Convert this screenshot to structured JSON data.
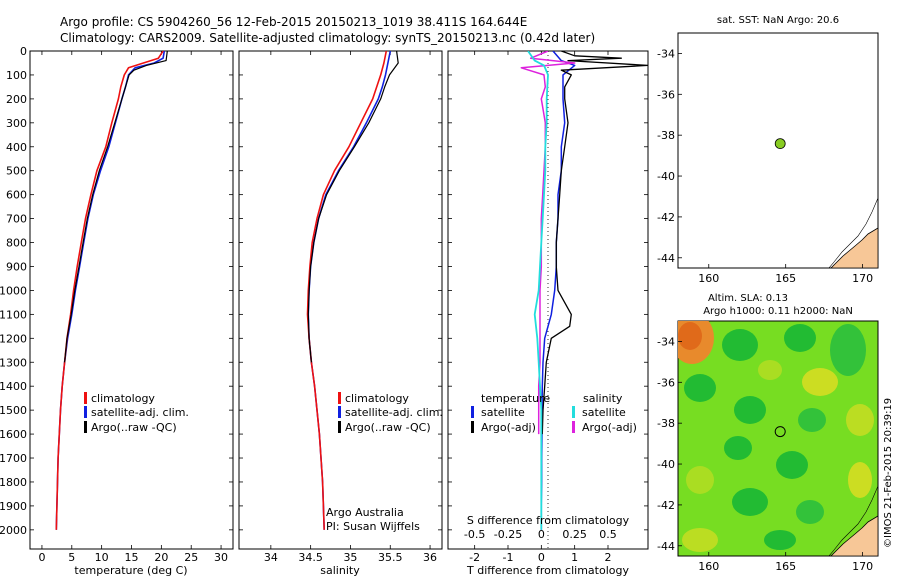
{
  "header": {
    "line1": "Argo profile: CS 5904260_56 12-Feb-2015 20150213_1019 38.411S 164.644E",
    "line2": "Climatology: CARS2009. Satellite-adjusted climatology: synTS_20150213.nc (0.42d later)"
  },
  "depth_ticks": [
    "0",
    "100",
    "200",
    "300",
    "400",
    "500",
    "600",
    "700",
    "800",
    "900",
    "1000",
    "1100",
    "1200",
    "1300",
    "1400",
    "1500",
    "1600",
    "1700",
    "1800",
    "1900",
    "2000"
  ],
  "colors": {
    "climatology": "#ee1111",
    "satellite": "#1020e0",
    "argo": "#000000",
    "cyan": "#22dddd",
    "magenta": "#dd22dd",
    "land": "#f7c797",
    "marker": "#88cc22"
  },
  "chart_data": [
    {
      "type": "line",
      "title": "",
      "xlabel": "temperature (deg C)",
      "ylabel": "",
      "xlim": [
        -2,
        32
      ],
      "ylim": [
        2080,
        0
      ],
      "xticks": [
        "0",
        "5",
        "10",
        "15",
        "20",
        "25",
        "30"
      ],
      "legend": [
        "climatology",
        "satellite-adj. clim.",
        "Argo(..raw -QC)"
      ],
      "series": [
        {
          "name": "climatology",
          "depth": [
            0,
            30,
            50,
            70,
            100,
            150,
            200,
            300,
            400,
            500,
            600,
            700,
            800,
            900,
            1000,
            1100,
            1200,
            1300,
            1400,
            1500,
            1600,
            1700,
            1800,
            1900,
            2000
          ],
          "values": [
            20.3,
            19.5,
            17.0,
            14.5,
            13.8,
            13.2,
            12.8,
            11.7,
            10.7,
            9.2,
            8.2,
            7.3,
            6.6,
            5.9,
            5.3,
            4.8,
            4.2,
            3.8,
            3.4,
            3.1,
            2.9,
            2.7,
            2.6,
            2.5,
            2.4
          ]
        },
        {
          "name": "satellite-adj. clim.",
          "depth": [
            0,
            30,
            50,
            70,
            100,
            150,
            200,
            300,
            400,
            500,
            600,
            700,
            800,
            900,
            1000,
            1100,
            1200,
            1300,
            1400,
            1500,
            1600,
            1700,
            1800,
            1900,
            2000
          ],
          "values": [
            20.5,
            20.3,
            18.8,
            15.6,
            14.5,
            14.0,
            13.4,
            12.3,
            11.2,
            9.8,
            8.6,
            7.7,
            7.0,
            6.3,
            5.6,
            5.0,
            4.3,
            3.8,
            3.4,
            3.1,
            2.9,
            2.7,
            2.6,
            2.5,
            2.4
          ]
        },
        {
          "name": "Argo(..raw -QC)",
          "depth": [
            0,
            20,
            40,
            60,
            80,
            100,
            150,
            200,
            300,
            400,
            500,
            600,
            700,
            800,
            900,
            1000,
            1100,
            1200,
            1300
          ],
          "values": [
            21.0,
            20.9,
            20.8,
            17.5,
            15.4,
            14.6,
            14.0,
            13.4,
            12.2,
            11.0,
            9.6,
            8.5,
            7.6,
            6.9,
            6.2,
            5.5,
            4.9,
            4.2,
            3.8
          ]
        }
      ]
    },
    {
      "type": "line",
      "title": "",
      "xlabel": "salinity",
      "ylabel": "",
      "xlim": [
        33.6,
        36.15
      ],
      "ylim": [
        2080,
        0
      ],
      "xticks": [
        "34",
        "34.5",
        "35",
        "35.5",
        "36"
      ],
      "legend": [
        "climatology",
        "satellite-adj. clim.",
        "Argo(..raw -QC)"
      ],
      "series": [
        {
          "name": "climatology",
          "depth": [
            0,
            50,
            100,
            150,
            200,
            300,
            400,
            500,
            600,
            700,
            800,
            900,
            1000,
            1100,
            1200,
            1300,
            1400,
            1500,
            1600,
            1700,
            1800,
            1900,
            2000
          ],
          "values": [
            35.45,
            35.42,
            35.38,
            35.33,
            35.28,
            35.13,
            34.98,
            34.8,
            34.66,
            34.58,
            34.52,
            34.49,
            34.47,
            34.46,
            34.48,
            34.51,
            34.55,
            34.58,
            34.61,
            34.63,
            34.65,
            34.66,
            34.67
          ]
        },
        {
          "name": "satellite-adj. clim.",
          "depth": [
            0,
            50,
            100,
            150,
            200,
            300,
            400,
            500,
            600,
            700,
            800,
            900,
            1000,
            1100,
            1200,
            1300,
            1400,
            1500,
            1600,
            1700,
            1800,
            1900,
            2000
          ],
          "values": [
            35.5,
            35.47,
            35.44,
            35.4,
            35.35,
            35.2,
            35.04,
            34.85,
            34.69,
            34.6,
            34.54,
            34.5,
            34.48,
            34.47,
            34.48,
            34.51,
            34.55,
            34.58,
            34.61,
            34.63,
            34.65,
            34.66,
            34.67
          ]
        },
        {
          "name": "Argo(..raw -QC)",
          "depth": [
            0,
            50,
            100,
            150,
            200,
            300,
            400,
            500,
            600,
            700,
            800,
            900,
            1000,
            1100,
            1200,
            1300
          ],
          "values": [
            35.58,
            35.6,
            35.49,
            35.43,
            35.38,
            35.23,
            35.05,
            34.86,
            34.7,
            34.6,
            34.54,
            34.5,
            34.48,
            34.47,
            34.48,
            34.51
          ]
        }
      ],
      "annotations": [
        "Argo Australia",
        "PI: Susan Wijffels"
      ]
    },
    {
      "type": "line",
      "title": "",
      "xlabel": "T difference from climatology",
      "xlabel_top": "S difference from climatology",
      "ylabel": "",
      "xlim": [
        -2.8,
        3.2
      ],
      "ylim": [
        2080,
        0
      ],
      "xticks_T": [
        "-2",
        "-1",
        "0",
        "1",
        "2"
      ],
      "xticks_S": [
        "-0.5",
        "-0.25",
        "0",
        "0.25",
        "0.5"
      ],
      "legend": {
        "temperature": [
          "satellite",
          "Argo(-adj)"
        ],
        "salinity": [
          "satellite",
          "Argo(-adj)"
        ]
      },
      "legend_headers": [
        "temperature",
        "salinity"
      ],
      "series": [
        {
          "name": "temperature satellite",
          "depth": [
            0,
            40,
            60,
            100,
            200,
            300,
            400,
            500,
            600,
            700,
            800,
            900,
            1000,
            1100,
            1200,
            1300,
            1400,
            1500,
            1600,
            1700,
            1800,
            1900,
            2000
          ],
          "values": [
            0.35,
            0.6,
            1.0,
            0.65,
            0.65,
            0.7,
            0.6,
            0.6,
            0.5,
            0.5,
            0.45,
            0.45,
            0.4,
            0.3,
            0.1,
            0.05,
            0.03,
            0.02,
            0.02,
            0.01,
            0.01,
            0.0,
            0.0
          ]
        },
        {
          "name": "temperature Argo(-adj)",
          "depth": [
            0,
            20,
            30,
            40,
            60,
            80,
            100,
            150,
            200,
            300,
            400,
            500,
            600,
            700,
            800,
            900,
            1000,
            1100,
            1150,
            1200,
            1300,
            1400,
            1500,
            1600
          ],
          "values": [
            0.6,
            1.0,
            2.4,
            0.8,
            3.2,
            0.6,
            0.9,
            0.7,
            0.7,
            0.8,
            0.7,
            0.6,
            0.55,
            0.5,
            0.45,
            0.45,
            0.5,
            0.9,
            0.85,
            0.3,
            0.15,
            0.1,
            0.05,
            0.03
          ]
        },
        {
          "name": "salinity satellite",
          "depth": [
            0,
            40,
            60,
            100,
            200,
            300,
            400,
            500,
            600,
            700,
            800,
            900,
            1000,
            1100,
            1200,
            1300,
            1400,
            1500,
            1600,
            1700,
            1800,
            1900,
            2000
          ],
          "values": [
            -0.1,
            -0.05,
            0.02,
            0.05,
            0.04,
            0.04,
            0.03,
            0.03,
            0.02,
            0.01,
            0.0,
            -0.01,
            -0.02,
            -0.05,
            -0.03,
            -0.02,
            -0.01,
            0.0,
            0.0,
            0.0,
            0.0,
            0.0,
            0.0
          ]
        },
        {
          "name": "salinity Argo(-adj)",
          "depth": [
            0,
            30,
            50,
            70,
            100,
            150,
            200,
            300,
            400,
            500,
            600,
            700,
            800,
            900,
            1000,
            1100,
            1200,
            1300,
            1400,
            1500,
            1600
          ],
          "values": [
            0.05,
            -0.08,
            0.25,
            -0.15,
            0.02,
            0.03,
            0.0,
            0.03,
            0.03,
            0.02,
            0.01,
            0.0,
            0.0,
            0.0,
            -0.01,
            -0.01,
            -0.01,
            -0.01,
            -0.02,
            -0.02,
            -0.02
          ]
        }
      ]
    },
    {
      "type": "scatter",
      "title": "sat. SST: NaN Argo: 20.6",
      "xlim": [
        158,
        171
      ],
      "ylim": [
        -44.5,
        -33
      ],
      "xticks": [
        "160",
        "165",
        "170"
      ],
      "yticks": [
        "-34",
        "-36",
        "-38",
        "-40",
        "-42",
        "-44"
      ],
      "points": [
        {
          "x": 164.644,
          "y": -38.411
        }
      ]
    },
    {
      "type": "heatmap",
      "title": "Altim. SLA: 0.13",
      "subtitle": "Argo h1000: 0.11 h2000: NaN",
      "xlim": [
        158,
        171
      ],
      "ylim": [
        -44.5,
        -33
      ],
      "xticks": [
        "160",
        "165",
        "170"
      ],
      "yticks": [
        "-34",
        "-36",
        "-38",
        "-40",
        "-42",
        "-44"
      ],
      "points": [
        {
          "x": 164.644,
          "y": -38.411
        }
      ]
    }
  ],
  "footer": {
    "stamp": "©IMOS 21-Feb-2015 20:39:19"
  }
}
